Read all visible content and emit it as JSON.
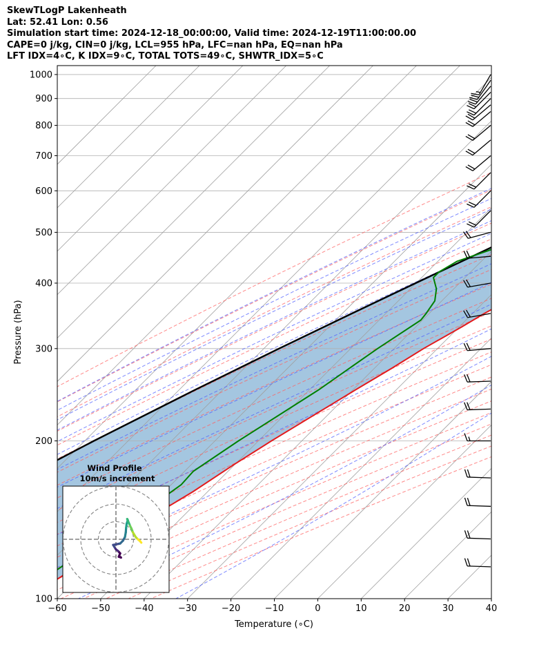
{
  "titles": [
    "SkewTLogP Lakenheath",
    "Lat: 52.41   Lon: 0.56",
    "Simulation start time: 2024-12-18_00:00:00, Valid time: 2024-12-19T11:00:00.00",
    "CAPE=0 j/kg, CIN=0 j/kg, LCL=955 hPa, LFC=nan hPa, EQ=nan hPa",
    "LFT IDX=4∘C, K IDX=9∘C, TOTAL TOTS=49∘C, SHWTR_IDX=5∘C"
  ],
  "colors": {
    "temperature": "#e31a1c",
    "dewpoint": "#008000",
    "parcel": "#000000",
    "cape_fill": "#9fc3de",
    "dry_adiabats": "#ff6060",
    "moist_adiabats": "#5060ff",
    "mixing_ratio": "#9b30c8",
    "isotherms": "#a0a0a0"
  },
  "chart_data": {
    "type": "skew-t log-p",
    "xlabel": "Temperature (∘C)",
    "ylabel": "Pressure (hPa)",
    "xlim": [
      -60,
      40
    ],
    "ylim": [
      1040,
      100
    ],
    "y_scale": "log",
    "grid": true,
    "x_ticks": [
      "−60",
      "−50",
      "−40",
      "−30",
      "−20",
      "−10",
      "0",
      "10",
      "20",
      "30",
      "40"
    ],
    "y_ticks": [
      "1000",
      "900",
      "800",
      "700",
      "600",
      "500",
      "400",
      "300",
      "200",
      "100"
    ],
    "temperature": [
      [
        1020,
        3.6
      ],
      [
        1000,
        3.4
      ],
      [
        980,
        3.1
      ],
      [
        950,
        3.0
      ],
      [
        920,
        2.5
      ],
      [
        900,
        1.7
      ],
      [
        850,
        -0.3
      ],
      [
        800,
        -2.8
      ],
      [
        750,
        -5.0
      ],
      [
        700,
        -7.0
      ],
      [
        650,
        -9.8
      ],
      [
        600,
        -12.8
      ],
      [
        575,
        -14.5
      ],
      [
        550,
        -15.8
      ],
      [
        525,
        -16.5
      ],
      [
        500,
        -17.2
      ],
      [
        470,
        -17.7
      ],
      [
        450,
        -18.4
      ],
      [
        420,
        -20.2
      ],
      [
        400,
        -22.1
      ],
      [
        375,
        -24.3
      ],
      [
        350,
        -27.3
      ],
      [
        330,
        -29.4
      ],
      [
        300,
        -33.2
      ],
      [
        275,
        -36.0
      ],
      [
        250,
        -39.4
      ],
      [
        225,
        -43.0
      ],
      [
        200,
        -47.0
      ],
      [
        180,
        -50.2
      ],
      [
        160,
        -53.4
      ],
      [
        150,
        -55.6
      ],
      [
        130,
        -59.6
      ],
      [
        120,
        -62.0
      ],
      [
        110,
        -64.2
      ],
      [
        100,
        -67.3
      ]
    ],
    "dewpoint": [
      [
        1020,
        1.8
      ],
      [
        1000,
        1.3
      ],
      [
        980,
        0.3
      ],
      [
        950,
        -3.2
      ],
      [
        920,
        -6.5
      ],
      [
        900,
        -9.5
      ],
      [
        850,
        -13.8
      ],
      [
        800,
        -15.2
      ],
      [
        780,
        -15.0
      ],
      [
        750,
        -14.1
      ],
      [
        700,
        -15.0
      ],
      [
        650,
        -19.0
      ],
      [
        600,
        -21.7
      ],
      [
        560,
        -23.9
      ],
      [
        520,
        -26.8
      ],
      [
        510,
        -28.5
      ],
      [
        490,
        -33.5
      ],
      [
        470,
        -39.0
      ],
      [
        440,
        -45.6
      ],
      [
        420,
        -47.3
      ],
      [
        410,
        -47.3
      ],
      [
        390,
        -44.0
      ],
      [
        370,
        -41.6
      ],
      [
        350,
        -40.7
      ],
      [
        340,
        -40.4
      ],
      [
        300,
        -43.8
      ],
      [
        250,
        -47.9
      ],
      [
        200,
        -54.6
      ],
      [
        175,
        -58.0
      ],
      [
        165,
        -57.7
      ],
      [
        150,
        -59.6
      ],
      [
        130,
        -63.4
      ],
      [
        100,
        -69.8
      ]
    ],
    "parcel": [
      [
        1020,
        5.5
      ],
      [
        1000,
        4.0
      ],
      [
        980,
        2.3
      ],
      [
        955,
        0.2
      ],
      [
        925,
        -1.7
      ],
      [
        900,
        -3.4
      ],
      [
        850,
        -6.6
      ],
      [
        800,
        -10.0
      ],
      [
        750,
        -13.6
      ],
      [
        700,
        -17.5
      ],
      [
        650,
        -21.7
      ],
      [
        600,
        -26.3
      ],
      [
        550,
        -31.4
      ],
      [
        500,
        -37.0
      ],
      [
        450,
        -43.2
      ],
      [
        400,
        -50.1
      ],
      [
        350,
        -57.8
      ],
      [
        300,
        -66.5
      ],
      [
        250,
        -76.4
      ],
      [
        200,
        -87.9
      ],
      [
        150,
        -101.6
      ],
      [
        100,
        -119.7
      ]
    ],
    "wind_barbs": [
      {
        "p": 1000,
        "speed_kt": 15,
        "dir_deg": 210
      },
      {
        "p": 975,
        "speed_kt": 20,
        "dir_deg": 215
      },
      {
        "p": 950,
        "speed_kt": 20,
        "dir_deg": 220
      },
      {
        "p": 925,
        "speed_kt": 20,
        "dir_deg": 225
      },
      {
        "p": 900,
        "speed_kt": 20,
        "dir_deg": 225
      },
      {
        "p": 875,
        "speed_kt": 20,
        "dir_deg": 230
      },
      {
        "p": 850,
        "speed_kt": 20,
        "dir_deg": 230
      },
      {
        "p": 800,
        "speed_kt": 20,
        "dir_deg": 230
      },
      {
        "p": 750,
        "speed_kt": 20,
        "dir_deg": 230
      },
      {
        "p": 700,
        "speed_kt": 20,
        "dir_deg": 230
      },
      {
        "p": 650,
        "speed_kt": 20,
        "dir_deg": 225
      },
      {
        "p": 600,
        "speed_kt": 20,
        "dir_deg": 225
      },
      {
        "p": 550,
        "speed_kt": 20,
        "dir_deg": 225
      },
      {
        "p": 500,
        "speed_kt": 20,
        "dir_deg": 255
      },
      {
        "p": 450,
        "speed_kt": 20,
        "dir_deg": 265
      },
      {
        "p": 400,
        "speed_kt": 20,
        "dir_deg": 260
      },
      {
        "p": 350,
        "speed_kt": 20,
        "dir_deg": 260
      },
      {
        "p": 300,
        "speed_kt": 20,
        "dir_deg": 265
      },
      {
        "p": 260,
        "speed_kt": 20,
        "dir_deg": 268
      },
      {
        "p": 230,
        "speed_kt": 20,
        "dir_deg": 268
      },
      {
        "p": 200,
        "speed_kt": 15,
        "dir_deg": 270
      },
      {
        "p": 170,
        "speed_kt": 20,
        "dir_deg": 272
      },
      {
        "p": 150,
        "speed_kt": 20,
        "dir_deg": 272
      },
      {
        "p": 130,
        "speed_kt": 20,
        "dir_deg": 272
      },
      {
        "p": 115,
        "speed_kt": 20,
        "dir_deg": 272
      }
    ],
    "hodograph": {
      "title": "Wind Profile",
      "subtitle": "10m/s increment",
      "ring_increment_ms": 10,
      "rings": 3,
      "points": [
        [
          3.2,
          8.0
        ],
        [
          4.0,
          7.2
        ],
        [
          5.0,
          4.8
        ],
        [
          5.5,
          3.8
        ],
        [
          6.0,
          2.5
        ],
        [
          7.0,
          0.8
        ],
        [
          7.8,
          0.0
        ],
        [
          8.5,
          -0.6
        ],
        [
          9.0,
          -1.2
        ]
      ],
      "tail": [
        [
          1.8,
          -6.5
        ],
        [
          1.0,
          -6.2
        ],
        [
          1.5,
          -5.0
        ],
        [
          0.8,
          -4.2
        ],
        [
          0.0,
          -3.6
        ],
        [
          -0.5,
          -2.8
        ],
        [
          -1.0,
          -2.0
        ],
        [
          1.5,
          -1.5
        ],
        [
          2.5,
          -0.5
        ],
        [
          3.2,
          0.8
        ],
        [
          3.5,
          2.5
        ],
        [
          3.6,
          4.0
        ],
        [
          3.8,
          5.5
        ],
        [
          4.2,
          6.8
        ]
      ]
    }
  }
}
